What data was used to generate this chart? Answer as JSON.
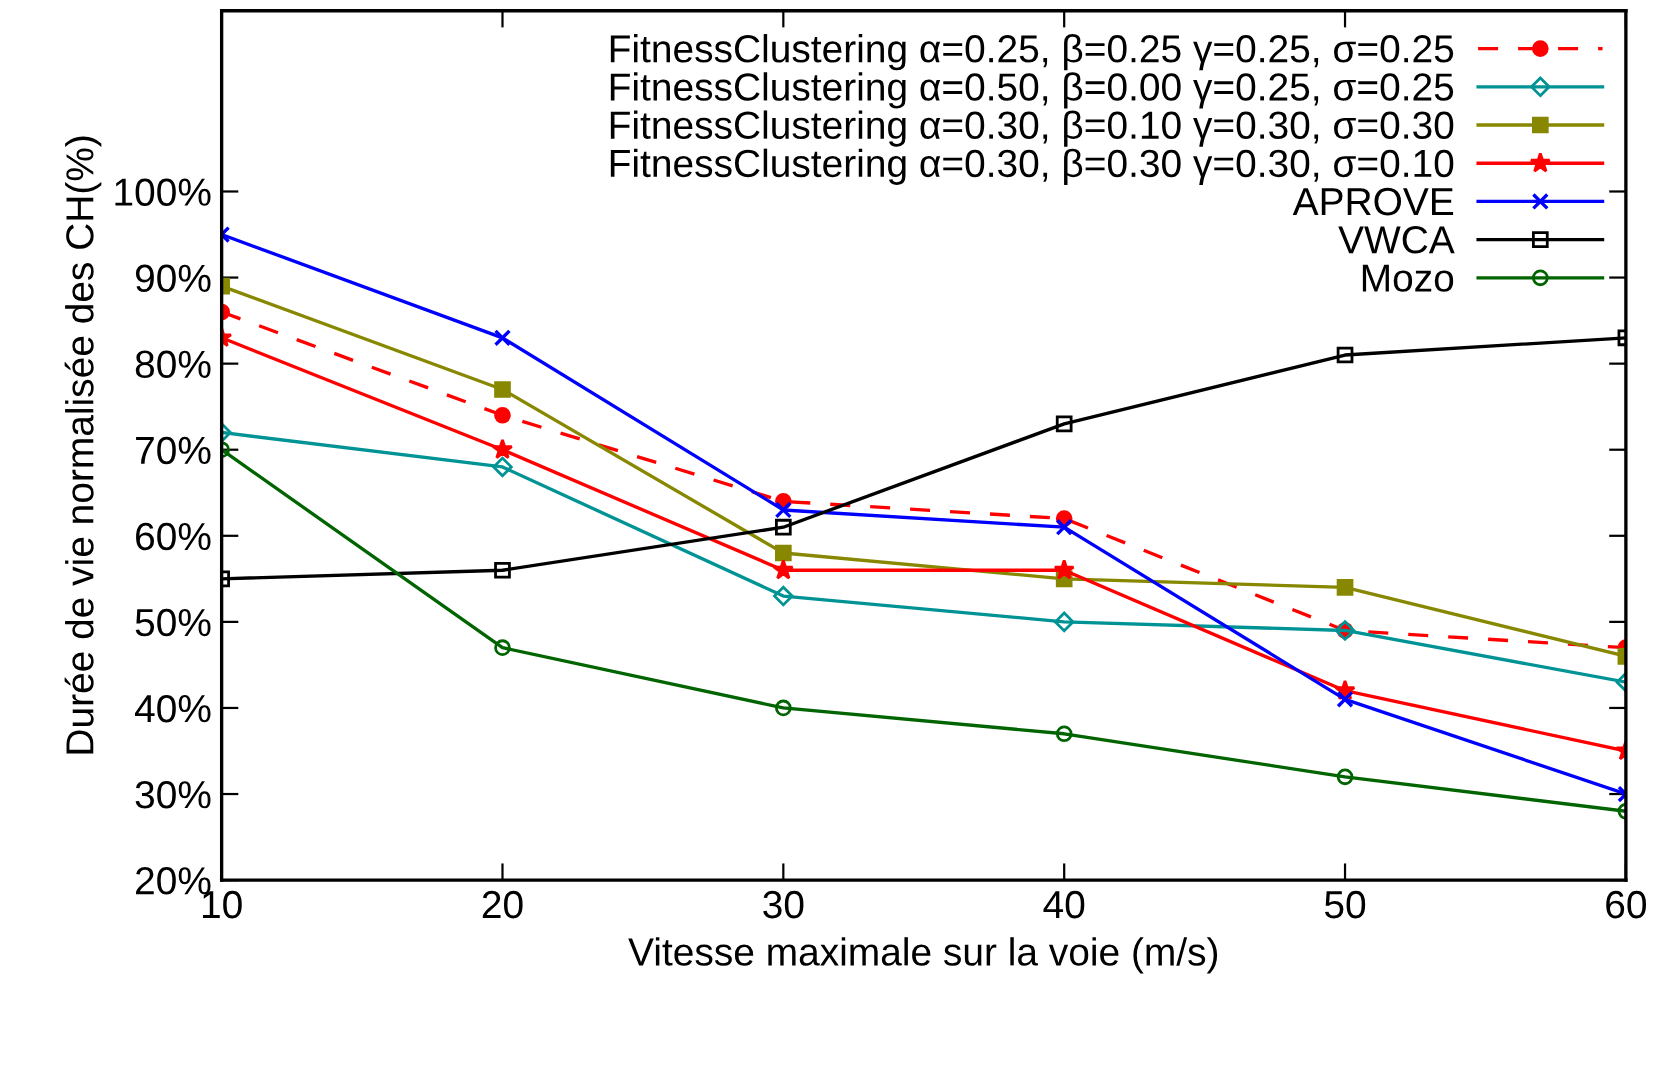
{
  "chart_data": {
    "type": "line",
    "xlabel": "Vitesse maximale sur la voie (m/s)",
    "ylabel": "Durée de vie normalisée des CH(%)",
    "x": [
      10,
      20,
      30,
      40,
      50,
      60
    ],
    "series": [
      {
        "name": "FitnessClustering α=0.25, β=0.25 γ=0.25, σ=0.25",
        "color": "#ff0000",
        "marker": "circle",
        "line_style": "dashed",
        "values": [
          86,
          74,
          64,
          62,
          49,
          47
        ]
      },
      {
        "name": "FitnessClustering α=0.50, β=0.00 γ=0.25, σ=0.25",
        "color": "#009395",
        "marker": "diamond_open",
        "line_style": "solid",
        "values": [
          72,
          68,
          53,
          50,
          49,
          43
        ]
      },
      {
        "name": "FitnessClustering α=0.30, β=0.10 γ=0.30, σ=0.30",
        "color": "#888800",
        "marker": "square",
        "line_style": "solid",
        "values": [
          89,
          77,
          58,
          55,
          54,
          46
        ]
      },
      {
        "name": "FitnessClustering α=0.30, β=0.30 γ=0.30, σ=0.10",
        "color": "#ff0000",
        "marker": "asterisk",
        "line_style": "solid",
        "values": [
          83,
          70,
          56,
          56,
          42,
          35
        ]
      },
      {
        "name": "APROVE",
        "color": "#0000ff",
        "marker": "cross",
        "line_style": "solid",
        "values": [
          95,
          83,
          63,
          61,
          41,
          30
        ]
      },
      {
        "name": "VWCA",
        "color": "#000000",
        "marker": "square_open",
        "line_style": "solid",
        "values": [
          55,
          56,
          61,
          73,
          81,
          83
        ]
      },
      {
        "name": "Mozo",
        "color": "#006400",
        "marker": "circle_open",
        "line_style": "solid",
        "values": [
          70,
          47,
          40,
          37,
          32,
          28
        ]
      }
    ],
    "xlim": [
      10,
      60
    ],
    "xticks": [
      10,
      20,
      30,
      40,
      50,
      60
    ],
    "ylim": [
      20,
      121
    ],
    "yticks": [
      {
        "value": 20,
        "label": "20%"
      },
      {
        "value": 30,
        "label": "30%"
      },
      {
        "value": 40,
        "label": "40%"
      },
      {
        "value": 50,
        "label": "50%"
      },
      {
        "value": 60,
        "label": "60%"
      },
      {
        "value": 70,
        "label": "70%"
      },
      {
        "value": 80,
        "label": "80%"
      },
      {
        "value": 90,
        "label": "90%"
      },
      {
        "value": 100,
        "label": "100%"
      }
    ],
    "grid": false,
    "legend": "top right"
  }
}
